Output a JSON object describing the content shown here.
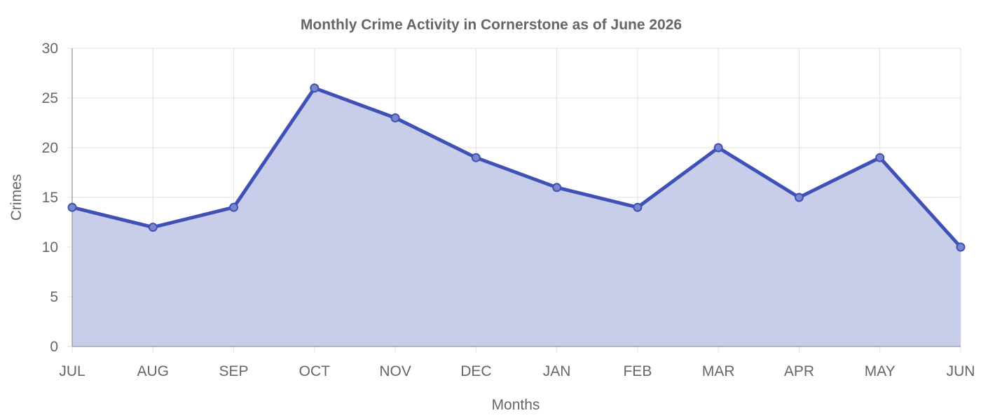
{
  "chart_data": {
    "type": "area",
    "title": "Monthly Crime Activity in Cornerstone as of June 2026",
    "xlabel": "Months",
    "ylabel": "Crimes",
    "categories": [
      "JUL",
      "AUG",
      "SEP",
      "OCT",
      "NOV",
      "DEC",
      "JAN",
      "FEB",
      "MAR",
      "APR",
      "MAY",
      "JUN"
    ],
    "values": [
      14,
      12,
      14,
      26,
      23,
      19,
      16,
      14,
      20,
      15,
      19,
      10
    ],
    "ylim": [
      0,
      30
    ],
    "yticks": [
      "0",
      "5",
      "10",
      "15",
      "20",
      "25",
      "30"
    ],
    "grid": true,
    "legend": "none",
    "colors": {
      "line": "#3f51b5",
      "fill": "#c5cae9",
      "point_fill": "#7986cb"
    }
  }
}
